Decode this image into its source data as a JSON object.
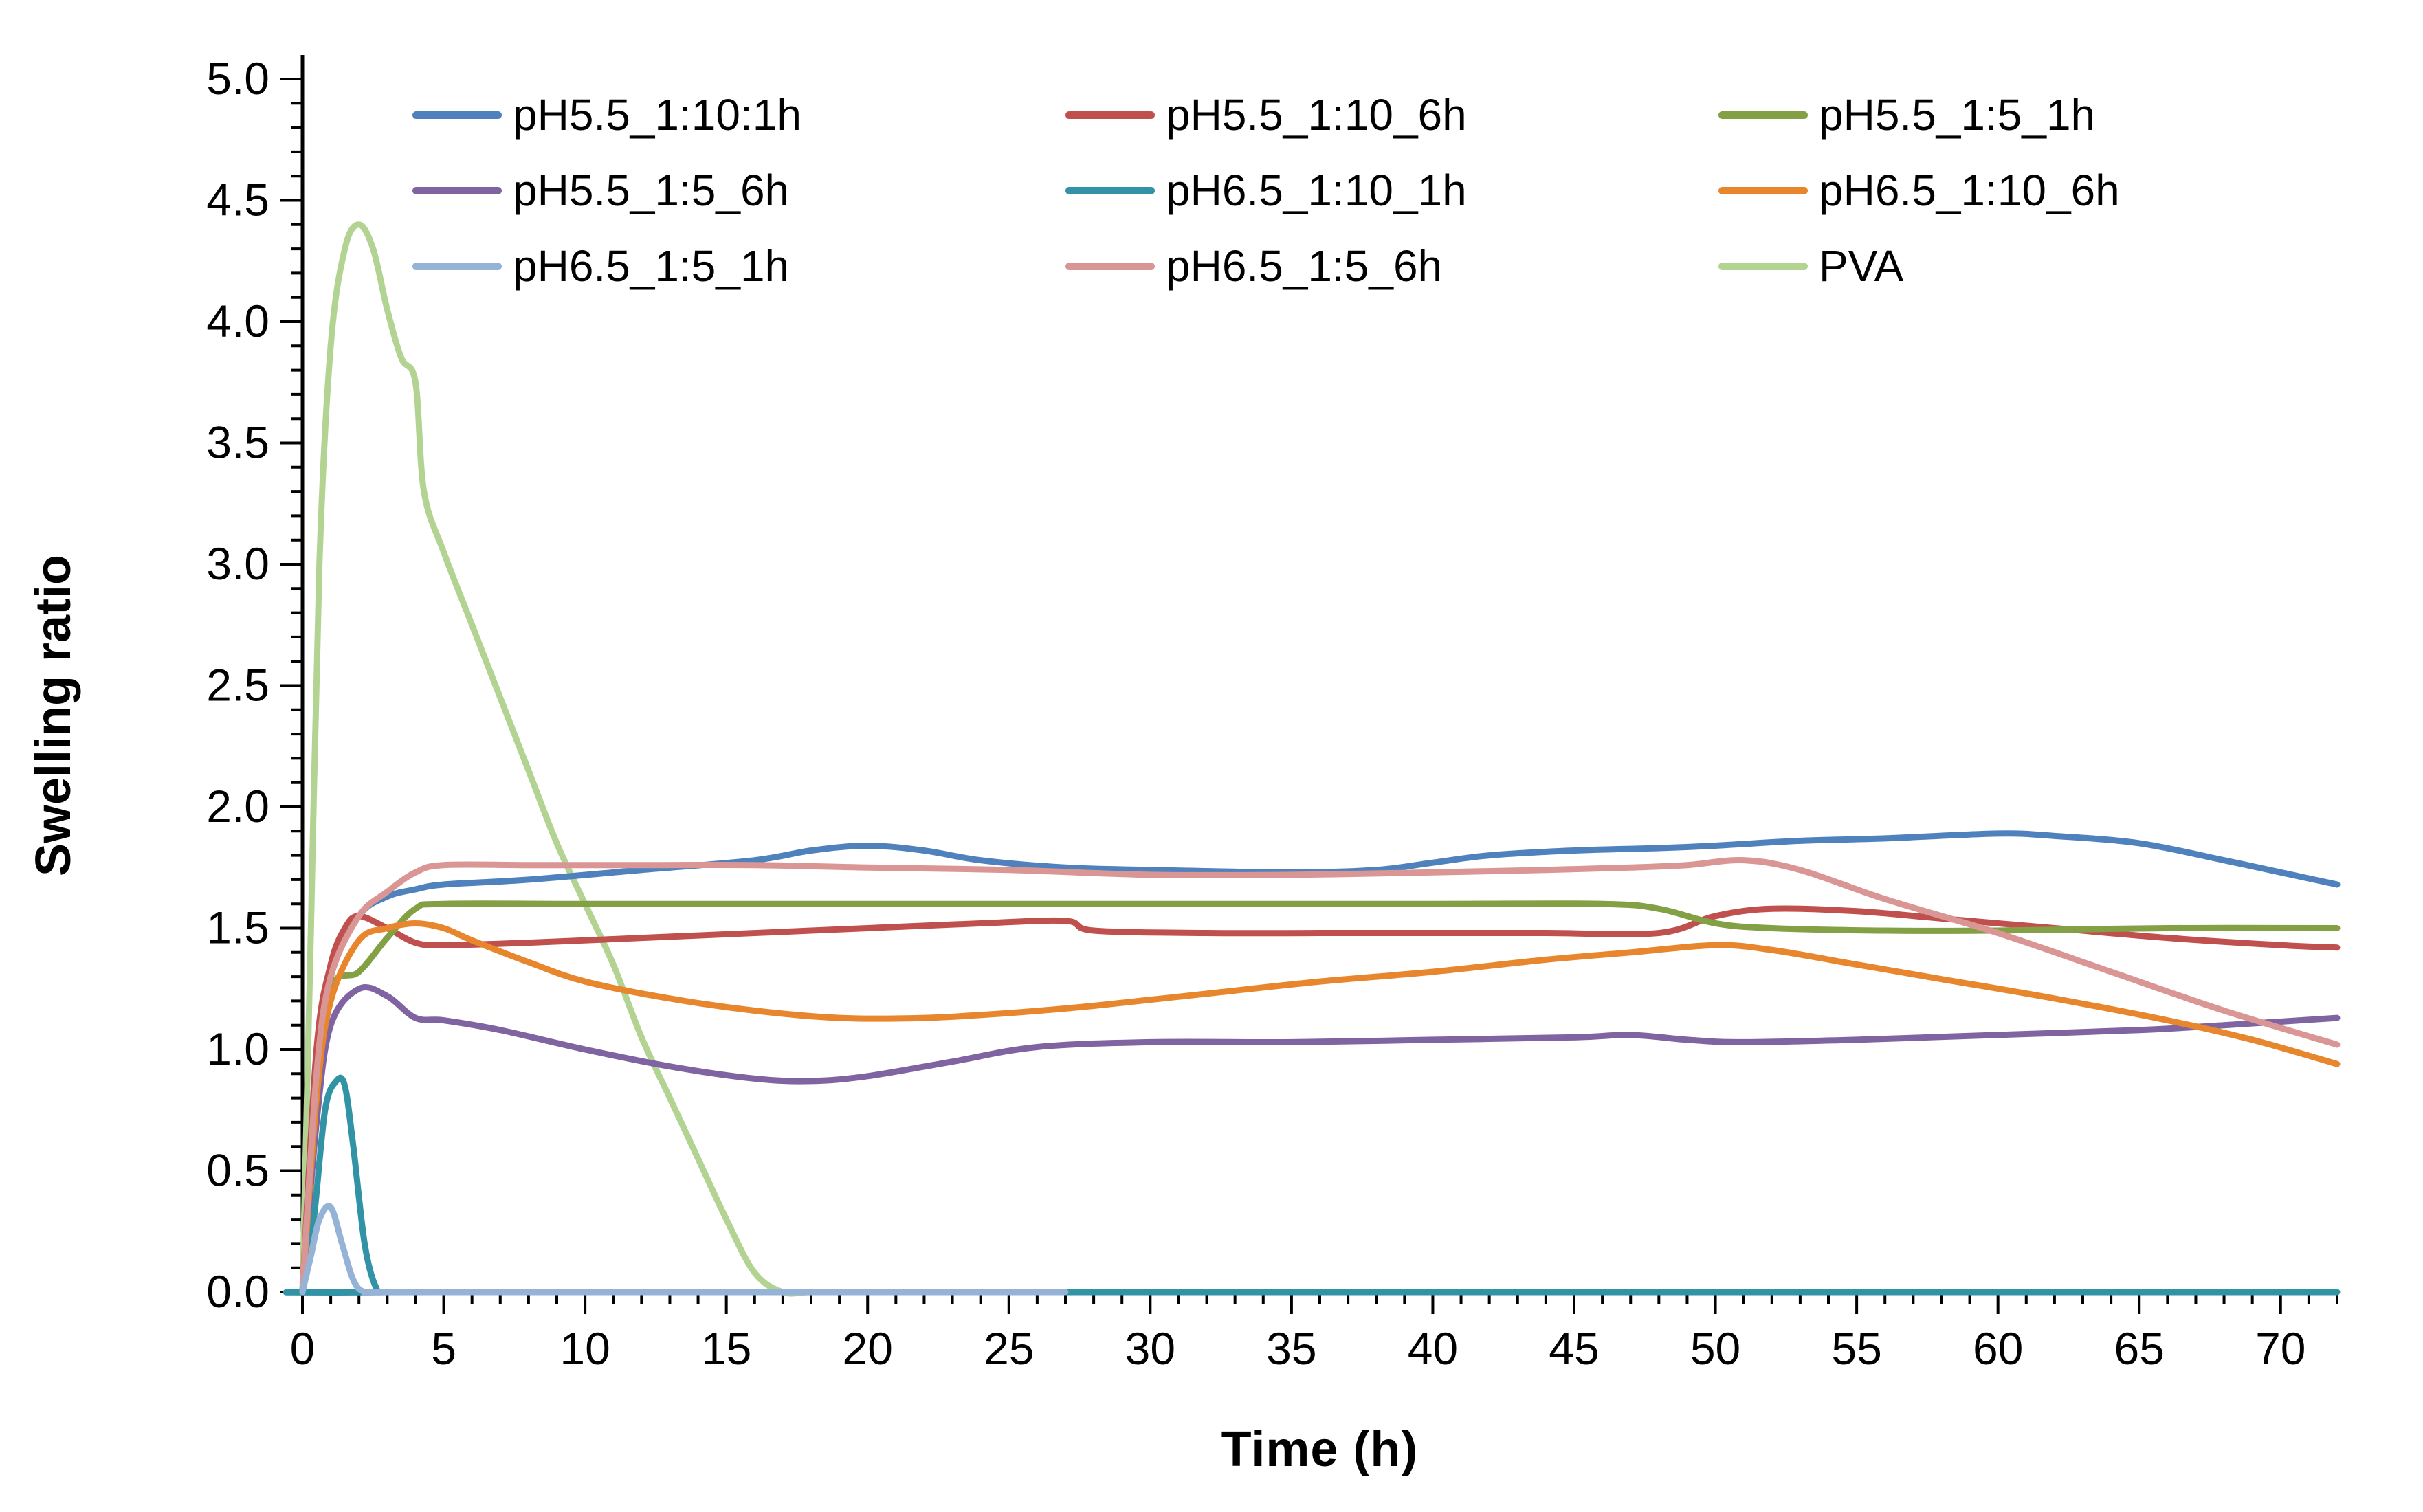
{
  "chart_data": {
    "type": "line",
    "title": "",
    "xlabel": "Time (h)",
    "ylabel": "Swelling ratio",
    "xlim": [
      0,
      72
    ],
    "ylim": [
      0,
      5.0
    ],
    "x_major_tick": 5,
    "x_minor_tick": 1,
    "y_major_tick": 0.5,
    "y_minor_tick": 0.1,
    "grid": false,
    "legend_position": "top-inside",
    "draw_order": [
      8,
      0,
      1,
      2,
      3,
      4,
      5,
      7,
      6
    ],
    "series": [
      {
        "name": "pH5.5_1:10:1h",
        "color": "#4F81BD",
        "x": [
          0,
          0.5,
          1,
          2,
          3,
          4,
          5,
          8,
          12,
          16,
          18,
          20,
          22,
          24,
          27,
          30,
          35,
          38,
          40,
          42,
          45,
          48,
          50,
          53,
          56,
          60,
          62,
          65,
          68,
          70,
          72
        ],
        "y": [
          0,
          0.9,
          1.3,
          1.55,
          1.63,
          1.66,
          1.68,
          1.7,
          1.74,
          1.78,
          1.82,
          1.84,
          1.82,
          1.78,
          1.75,
          1.74,
          1.73,
          1.74,
          1.77,
          1.8,
          1.82,
          1.83,
          1.84,
          1.86,
          1.87,
          1.89,
          1.88,
          1.85,
          1.78,
          1.73,
          1.68
        ]
      },
      {
        "name": "pH5.5_1:10_6h",
        "color": "#C0504D",
        "x": [
          0,
          0.5,
          1,
          1.5,
          2,
          3,
          4,
          5,
          8,
          12,
          16,
          20,
          24,
          27,
          28,
          32,
          36,
          40,
          44,
          48,
          50,
          52,
          55,
          58,
          62,
          66,
          70,
          72
        ],
        "y": [
          0,
          1.0,
          1.35,
          1.5,
          1.55,
          1.5,
          1.44,
          1.43,
          1.44,
          1.46,
          1.48,
          1.5,
          1.52,
          1.53,
          1.49,
          1.48,
          1.48,
          1.48,
          1.48,
          1.48,
          1.55,
          1.58,
          1.57,
          1.54,
          1.5,
          1.46,
          1.43,
          1.42
        ]
      },
      {
        "name": "pH5.5_1:5_1h",
        "color": "#84A045",
        "x": [
          0,
          0.5,
          1,
          2,
          3,
          4,
          5,
          10,
          20,
          30,
          40,
          46,
          48,
          50,
          52,
          56,
          60,
          66,
          72
        ],
        "y": [
          0,
          0.8,
          1.25,
          1.32,
          1.46,
          1.58,
          1.6,
          1.6,
          1.6,
          1.6,
          1.6,
          1.6,
          1.58,
          1.52,
          1.5,
          1.49,
          1.49,
          1.5,
          1.5
        ]
      },
      {
        "name": "pH5.5_1:5_6h",
        "color": "#8064A2",
        "x": [
          0,
          0.5,
          1,
          2,
          3,
          4,
          5,
          7,
          10,
          13,
          16,
          18,
          20,
          23,
          26,
          30,
          35,
          40,
          45,
          47,
          49,
          51,
          55,
          60,
          65,
          68,
          72
        ],
        "y": [
          0,
          0.7,
          1.1,
          1.25,
          1.22,
          1.13,
          1.12,
          1.08,
          1.0,
          0.93,
          0.88,
          0.87,
          0.89,
          0.95,
          1.01,
          1.03,
          1.03,
          1.04,
          1.05,
          1.06,
          1.04,
          1.03,
          1.04,
          1.06,
          1.08,
          1.1,
          1.13
        ]
      },
      {
        "name": "pH6.5_1:10_1h",
        "color": "#3193A5",
        "x": [
          0,
          0.4,
          0.8,
          1.2,
          1.5,
          1.8,
          2.2,
          2.6,
          3,
          5,
          72
        ],
        "y": [
          0,
          0.3,
          0.75,
          0.87,
          0.85,
          0.6,
          0.2,
          0.02,
          0,
          0,
          0
        ]
      },
      {
        "name": "pH6.5_1:10_6h",
        "color": "#E8862D",
        "x": [
          0,
          0.5,
          1,
          2,
          3,
          4,
          5,
          6,
          8,
          10,
          13,
          16,
          19,
          22,
          25,
          28,
          32,
          36,
          40,
          44,
          47,
          50,
          52,
          55,
          58,
          62,
          66,
          69,
          72
        ],
        "y": [
          0,
          0.8,
          1.2,
          1.45,
          1.5,
          1.52,
          1.5,
          1.45,
          1.36,
          1.28,
          1.21,
          1.16,
          1.13,
          1.13,
          1.15,
          1.18,
          1.23,
          1.28,
          1.32,
          1.37,
          1.4,
          1.43,
          1.41,
          1.35,
          1.29,
          1.21,
          1.12,
          1.04,
          0.94
        ]
      },
      {
        "name": "pH6.5_1:5_1h",
        "color": "#95B3D7",
        "x": [
          0,
          0.3,
          0.6,
          1,
          1.4,
          1.8,
          2.2,
          3,
          10,
          27
        ],
        "y": [
          0,
          0.15,
          0.3,
          0.35,
          0.2,
          0.05,
          0,
          0,
          0,
          0
        ]
      },
      {
        "name": "pH6.5_1:5_6h",
        "color": "#D99694",
        "x": [
          0,
          0.5,
          1,
          2,
          3,
          4,
          5,
          8,
          12,
          16,
          20,
          25,
          30,
          35,
          40,
          44,
          47,
          49,
          51,
          53,
          56,
          60,
          64,
          68,
          72
        ],
        "y": [
          0,
          0.9,
          1.3,
          1.55,
          1.65,
          1.73,
          1.76,
          1.76,
          1.76,
          1.76,
          1.75,
          1.74,
          1.72,
          1.72,
          1.73,
          1.74,
          1.75,
          1.76,
          1.78,
          1.74,
          1.62,
          1.48,
          1.32,
          1.16,
          1.02
        ]
      },
      {
        "name": "PVA",
        "color": "#B3D393",
        "x": [
          0,
          0.3,
          0.6,
          1,
          1.5,
          2,
          2.5,
          3,
          3.5,
          4,
          4.3,
          5,
          6,
          7,
          8,
          9,
          10,
          11,
          12,
          13,
          14,
          15,
          16,
          17,
          18,
          20,
          30,
          50,
          72
        ],
        "y": [
          0,
          1.5,
          3.0,
          3.9,
          4.3,
          4.4,
          4.3,
          4.05,
          3.85,
          3.75,
          3.3,
          3.05,
          2.75,
          2.45,
          2.15,
          1.85,
          1.6,
          1.35,
          1.05,
          0.8,
          0.55,
          0.3,
          0.08,
          0,
          0,
          0,
          0,
          0,
          0
        ]
      }
    ]
  }
}
